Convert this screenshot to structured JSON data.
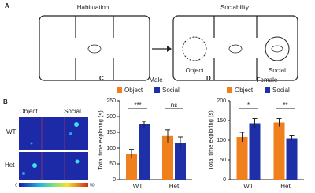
{
  "panel_labels": [
    "A",
    "B",
    "C",
    "D"
  ],
  "diagram": {
    "habituation": "Habituation",
    "sociability": "Sociability",
    "object": "Object",
    "social": "Social"
  },
  "heatmap": {
    "columns": [
      "Object",
      "Social"
    ],
    "rows": [
      "WT",
      "Het"
    ],
    "scale": [
      "0",
      "50"
    ]
  },
  "chart_data": [
    {
      "type": "bar",
      "title": "Male",
      "y_label": "Total time exploring (s)",
      "categories": [
        "WT",
        "Het"
      ],
      "series": [
        {
          "name": "Object",
          "color": "#f07f1e",
          "values": [
            82,
            138
          ],
          "errors": [
            14,
            20
          ]
        },
        {
          "name": "Social",
          "color": "#1f2fa8",
          "values": [
            175,
            115
          ],
          "errors": [
            10,
            20
          ]
        }
      ],
      "annotations": [
        "***",
        "ns"
      ],
      "ylim": [
        0,
        250
      ],
      "yticks": [
        0,
        50,
        100,
        150,
        200,
        250
      ]
    },
    {
      "type": "bar",
      "title": "Female",
      "y_label": "Total time exploring (s)",
      "categories": [
        "WT",
        "Het"
      ],
      "series": [
        {
          "name": "Object",
          "color": "#f07f1e",
          "values": [
            108,
            145
          ],
          "errors": [
            12,
            10
          ]
        },
        {
          "name": "Social",
          "color": "#1f2fa8",
          "values": [
            143,
            105
          ],
          "errors": [
            12,
            6
          ]
        }
      ],
      "annotations": [
        "*",
        "**"
      ],
      "ylim": [
        0,
        200
      ],
      "yticks": [
        0,
        50,
        100,
        150,
        200
      ]
    }
  ]
}
